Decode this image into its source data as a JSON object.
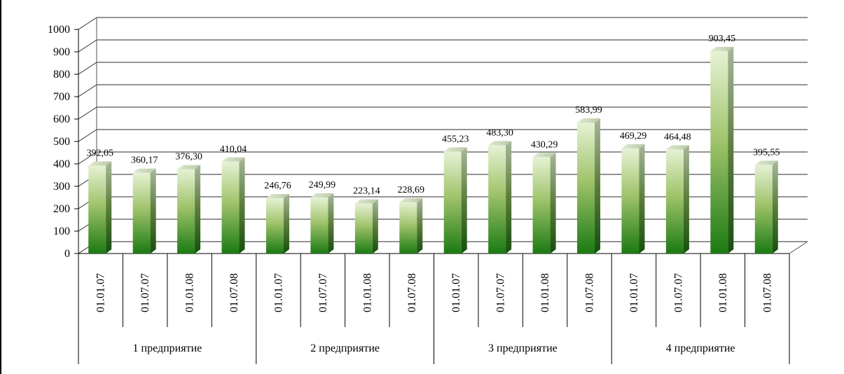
{
  "chart_data": {
    "type": "bar",
    "title": "",
    "xlabel": "",
    "ylabel": "",
    "ylim": [
      0,
      1000
    ],
    "yticks": [
      0,
      100,
      200,
      300,
      400,
      500,
      600,
      700,
      800,
      900,
      1000
    ],
    "grid": true,
    "legend": "none",
    "colors": {
      "bar_top": "#e6f2d4",
      "bar_mid": "#9fc36a",
      "bar_bottom": "#1b7a12",
      "gridline": "#555555"
    },
    "groups": [
      {
        "label": "1 предприятие",
        "categories": [
          "01.01.07",
          "01.07.07",
          "01.01.08",
          "01.07.08"
        ],
        "values": [
          392.05,
          360.17,
          376.3,
          410.04
        ],
        "data_labels": [
          "392,05",
          "360,17",
          "376,30",
          "410,04"
        ]
      },
      {
        "label": "2 предприятие",
        "categories": [
          "01.01.07",
          "01.07.07",
          "01.01.08",
          "01.07.08"
        ],
        "values": [
          246.76,
          249.99,
          223.14,
          228.69
        ],
        "data_labels": [
          "246,76",
          "249,99",
          "223,14",
          "228,69"
        ]
      },
      {
        "label": "3 предприятие",
        "categories": [
          "01.01.07",
          "01.07.07",
          "01.01.08",
          "01.07.08"
        ],
        "values": [
          455.23,
          483.3,
          430.29,
          583.99
        ],
        "data_labels": [
          "455,23",
          "483,30",
          "430,29",
          "583,99"
        ]
      },
      {
        "label": "4 предприятие",
        "categories": [
          "01.01.07",
          "01.07.07",
          "01.01.08",
          "01.07.08"
        ],
        "values": [
          469.29,
          464.48,
          903.45,
          395.55
        ],
        "data_labels": [
          "469,29",
          "464,48",
          "903,45",
          "395,55"
        ]
      }
    ]
  }
}
